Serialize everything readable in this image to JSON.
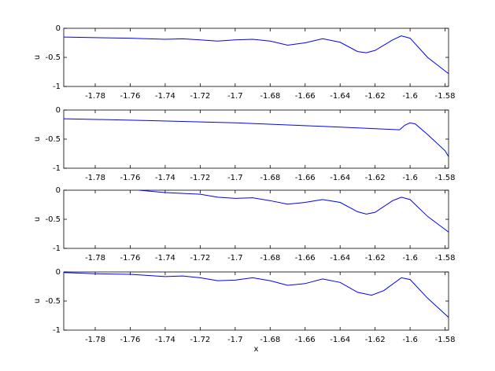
{
  "chart_data": [
    {
      "type": "line",
      "ylabel": "u",
      "x": [
        -1.798,
        -1.78,
        -1.76,
        -1.74,
        -1.73,
        -1.72,
        -1.71,
        -1.7,
        -1.69,
        -1.68,
        -1.67,
        -1.66,
        -1.65,
        -1.64,
        -1.63,
        -1.625,
        -1.62,
        -1.61,
        -1.605,
        -1.6,
        -1.59,
        -1.578
      ],
      "series": [
        {
          "color": "#0000ff",
          "values": [
            -0.15,
            -0.16,
            -0.17,
            -0.19,
            -0.18,
            -0.2,
            -0.22,
            -0.2,
            -0.19,
            -0.22,
            -0.29,
            -0.25,
            -0.18,
            -0.24,
            -0.4,
            -0.42,
            -0.38,
            -0.2,
            -0.13,
            -0.17,
            -0.5,
            -0.78
          ]
        }
      ],
      "xlim": [
        -1.798,
        -1.578
      ],
      "ylim": [
        -1,
        0
      ],
      "xticks": [
        -1.78,
        -1.76,
        -1.74,
        -1.72,
        -1.7,
        -1.68,
        -1.66,
        -1.64,
        -1.62,
        -1.6,
        -1.58
      ],
      "yticks": [
        -1,
        -0.5,
        0
      ]
    },
    {
      "type": "line",
      "ylabel": "u",
      "x": [
        -1.798,
        -1.75,
        -1.7,
        -1.65,
        -1.606,
        -1.603,
        -1.6,
        -1.597,
        -1.59,
        -1.58,
        -1.578
      ],
      "series": [
        {
          "color": "#0000ff",
          "values": [
            -0.15,
            -0.18,
            -0.22,
            -0.28,
            -0.34,
            -0.26,
            -0.22,
            -0.24,
            -0.42,
            -0.7,
            -0.8
          ]
        }
      ],
      "xlim": [
        -1.798,
        -1.578
      ],
      "ylim": [
        -1,
        0
      ],
      "xticks": [
        -1.78,
        -1.76,
        -1.74,
        -1.72,
        -1.7,
        -1.68,
        -1.66,
        -1.64,
        -1.62,
        -1.6,
        -1.58
      ],
      "yticks": [
        -1,
        -0.5,
        0
      ]
    },
    {
      "type": "line",
      "ylabel": "u",
      "x": [
        -1.755,
        -1.74,
        -1.72,
        -1.71,
        -1.7,
        -1.69,
        -1.68,
        -1.67,
        -1.66,
        -1.65,
        -1.64,
        -1.63,
        -1.625,
        -1.62,
        -1.61,
        -1.605,
        -1.6,
        -1.59,
        -1.578
      ],
      "series": [
        {
          "color": "#0000ff",
          "values": [
            0,
            -0.04,
            -0.07,
            -0.12,
            -0.14,
            -0.13,
            -0.18,
            -0.24,
            -0.21,
            -0.16,
            -0.21,
            -0.37,
            -0.41,
            -0.38,
            -0.18,
            -0.12,
            -0.16,
            -0.45,
            -0.72
          ]
        }
      ],
      "xlim": [
        -1.798,
        -1.578
      ],
      "ylim": [
        -1,
        0
      ],
      "xticks": [
        -1.78,
        -1.76,
        -1.74,
        -1.72,
        -1.7,
        -1.68,
        -1.66,
        -1.64,
        -1.62,
        -1.6,
        -1.58
      ],
      "yticks": [
        -1,
        -0.5,
        0
      ]
    },
    {
      "type": "line",
      "ylabel": "u",
      "xlabel": "x",
      "x": [
        -1.798,
        -1.78,
        -1.76,
        -1.74,
        -1.73,
        -1.72,
        -1.71,
        -1.7,
        -1.69,
        -1.68,
        -1.67,
        -1.66,
        -1.65,
        -1.64,
        -1.63,
        -1.622,
        -1.615,
        -1.605,
        -1.6,
        -1.59,
        -1.578
      ],
      "series": [
        {
          "color": "#0000ff",
          "values": [
            -0.01,
            -0.03,
            -0.04,
            -0.08,
            -0.07,
            -0.1,
            -0.15,
            -0.14,
            -0.1,
            -0.15,
            -0.23,
            -0.2,
            -0.12,
            -0.18,
            -0.35,
            -0.4,
            -0.32,
            -0.1,
            -0.13,
            -0.45,
            -0.78
          ]
        }
      ],
      "xlim": [
        -1.798,
        -1.578
      ],
      "ylim": [
        -1,
        0
      ],
      "xticks": [
        -1.78,
        -1.76,
        -1.74,
        -1.72,
        -1.7,
        -1.68,
        -1.66,
        -1.64,
        -1.62,
        -1.6,
        -1.58
      ],
      "yticks": [
        -1,
        -0.5,
        0
      ]
    }
  ]
}
